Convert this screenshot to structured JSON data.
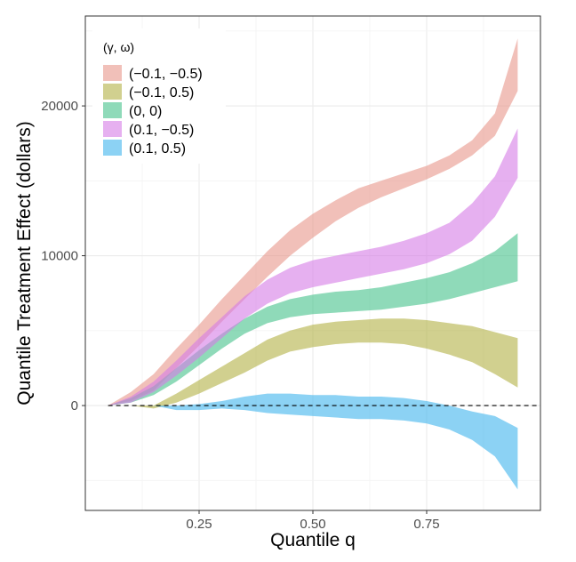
{
  "chart_data": {
    "type": "area",
    "title": "",
    "xlabel": "Quantile q",
    "ylabel": "Quantile Treatment Effect (dollars)",
    "xlim": [
      0.0,
      1.0
    ],
    "ylim": [
      -7000,
      26000
    ],
    "x_ticks": [
      0.25,
      0.5,
      0.75
    ],
    "x_tick_labels": [
      "0.25",
      "0.50",
      "0.75"
    ],
    "y_ticks": [
      0,
      10000,
      20000
    ],
    "y_tick_labels": [
      "0",
      "10000",
      "20000"
    ],
    "grid": true,
    "reference_line": {
      "y": 0,
      "style": "dashed"
    },
    "legend": {
      "title": "(γ, ω)",
      "position": "top-left"
    },
    "x": [
      0.05,
      0.1,
      0.15,
      0.2,
      0.25,
      0.3,
      0.35,
      0.4,
      0.45,
      0.5,
      0.55,
      0.6,
      0.65,
      0.7,
      0.75,
      0.8,
      0.85,
      0.9,
      0.95
    ],
    "series": [
      {
        "name": "(−0.1, −0.5)",
        "color": "#e7968b",
        "lower": [
          0,
          300,
          1000,
          2500,
          4000,
          5600,
          7100,
          8600,
          10000,
          11200,
          12300,
          13200,
          13900,
          14500,
          15100,
          15800,
          16700,
          18000,
          21000
        ],
        "upper": [
          0,
          900,
          2100,
          3800,
          5400,
          7100,
          8700,
          10300,
          11700,
          12800,
          13700,
          14500,
          15000,
          15500,
          16000,
          16700,
          17700,
          19500,
          24500
        ]
      },
      {
        "name": "(−0.1, 0.5)",
        "color": "#b2b044",
        "lower": [
          0,
          0,
          -200,
          200,
          800,
          1500,
          2200,
          3000,
          3600,
          3900,
          4100,
          4200,
          4200,
          4100,
          3800,
          3400,
          2900,
          2100,
          1200
        ],
        "upper": [
          0,
          0,
          0,
          800,
          1700,
          2600,
          3500,
          4400,
          5000,
          5400,
          5600,
          5700,
          5800,
          5800,
          5700,
          5500,
          5300,
          4900,
          4500
        ]
      },
      {
        "name": "(0, 0)",
        "color": "#44c28a",
        "lower": [
          0,
          200,
          700,
          1600,
          2700,
          3800,
          4800,
          5500,
          5900,
          6100,
          6200,
          6300,
          6400,
          6600,
          6800,
          7100,
          7500,
          7900,
          8300
        ],
        "upper": [
          0,
          500,
          1300,
          2500,
          3700,
          4800,
          5800,
          6600,
          7100,
          7400,
          7600,
          7700,
          7900,
          8200,
          8500,
          8900,
          9500,
          10300,
          11500
        ]
      },
      {
        "name": "(0.1, −0.5)",
        "color": "#d67be6",
        "lower": [
          0,
          200,
          900,
          2000,
          3200,
          4500,
          5800,
          6800,
          7500,
          7900,
          8200,
          8500,
          8800,
          9100,
          9500,
          10100,
          11000,
          12600,
          15200
        ],
        "upper": [
          0,
          600,
          1600,
          3000,
          4500,
          5900,
          7300,
          8400,
          9200,
          9700,
          10000,
          10300,
          10600,
          11000,
          11500,
          12200,
          13500,
          15300,
          18500
        ]
      },
      {
        "name": "(0.1, 0.5)",
        "color": "#3fb4ec",
        "lower": [
          0,
          0,
          0,
          -300,
          -300,
          -200,
          -300,
          -500,
          -600,
          -700,
          -800,
          -900,
          -900,
          -1000,
          -1200,
          -1600,
          -2300,
          -3400,
          -5600
        ],
        "upper": [
          0,
          0,
          0,
          0,
          100,
          300,
          600,
          800,
          800,
          700,
          700,
          600,
          600,
          500,
          300,
          0,
          -400,
          -700,
          -1500
        ]
      }
    ]
  }
}
